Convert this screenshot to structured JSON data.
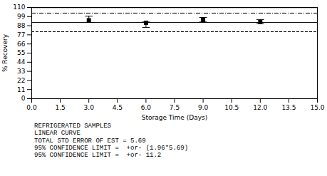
{
  "chart_data": {
    "type": "scatter",
    "xlabel": "Storage Time (Days)",
    "ylabel": "% Recovery",
    "xlim": [
      0.0,
      15.0
    ],
    "ylim": [
      0,
      110
    ],
    "xticks": [
      {
        "value": 0,
        "label": "0.0"
      },
      1.5,
      {
        "value": 3,
        "label": "3.0"
      },
      4.5,
      {
        "value": 6,
        "label": "6.0"
      },
      7.5,
      {
        "value": 9,
        "label": "9.0"
      },
      10.5,
      {
        "value": 12,
        "label": "12.0"
      },
      13.5,
      {
        "value": 15,
        "label": "15.0"
      }
    ],
    "yticks": [
      0,
      11,
      22,
      33,
      44,
      55,
      66,
      77,
      88,
      99,
      110
    ],
    "grid": false,
    "series": [
      {
        "type": "hline",
        "values": [
          109.8
        ],
        "line_style": "solid",
        "color": "#000000"
      },
      {
        "type": "hline",
        "values": [
          103.2
        ],
        "line_style": "dashdot",
        "color": "#000000"
      },
      {
        "type": "hline",
        "values": [
          92.0
        ],
        "line_style": "solid",
        "color": "#000000"
      },
      {
        "type": "hline",
        "values": [
          80.8
        ],
        "line_style": "dashed",
        "color": "#000000"
      },
      {
        "type": "scatter",
        "x": [
          3.0,
          6.0,
          9.0,
          12.0
        ],
        "values": [
          94.5,
          91.5,
          95.0,
          92.5
        ],
        "yerr_low": [
          2.5,
          5.5,
          2.5,
          2.0
        ],
        "yerr_high": [
          5.0,
          1.0,
          3.0,
          3.0
        ],
        "marker": "square",
        "color": "#000000"
      }
    ],
    "annotations": [
      "REFRIGERATED SAMPLES",
      "LINEAR CURVE",
      "TOTAL STD ERROR OF EST = 5.69",
      "95% CONFIDENCE LIMIT =  +or- (1.96*5.69)",
      "95% CONFIDENCE LIMIT =  +or- 11.2"
    ]
  }
}
